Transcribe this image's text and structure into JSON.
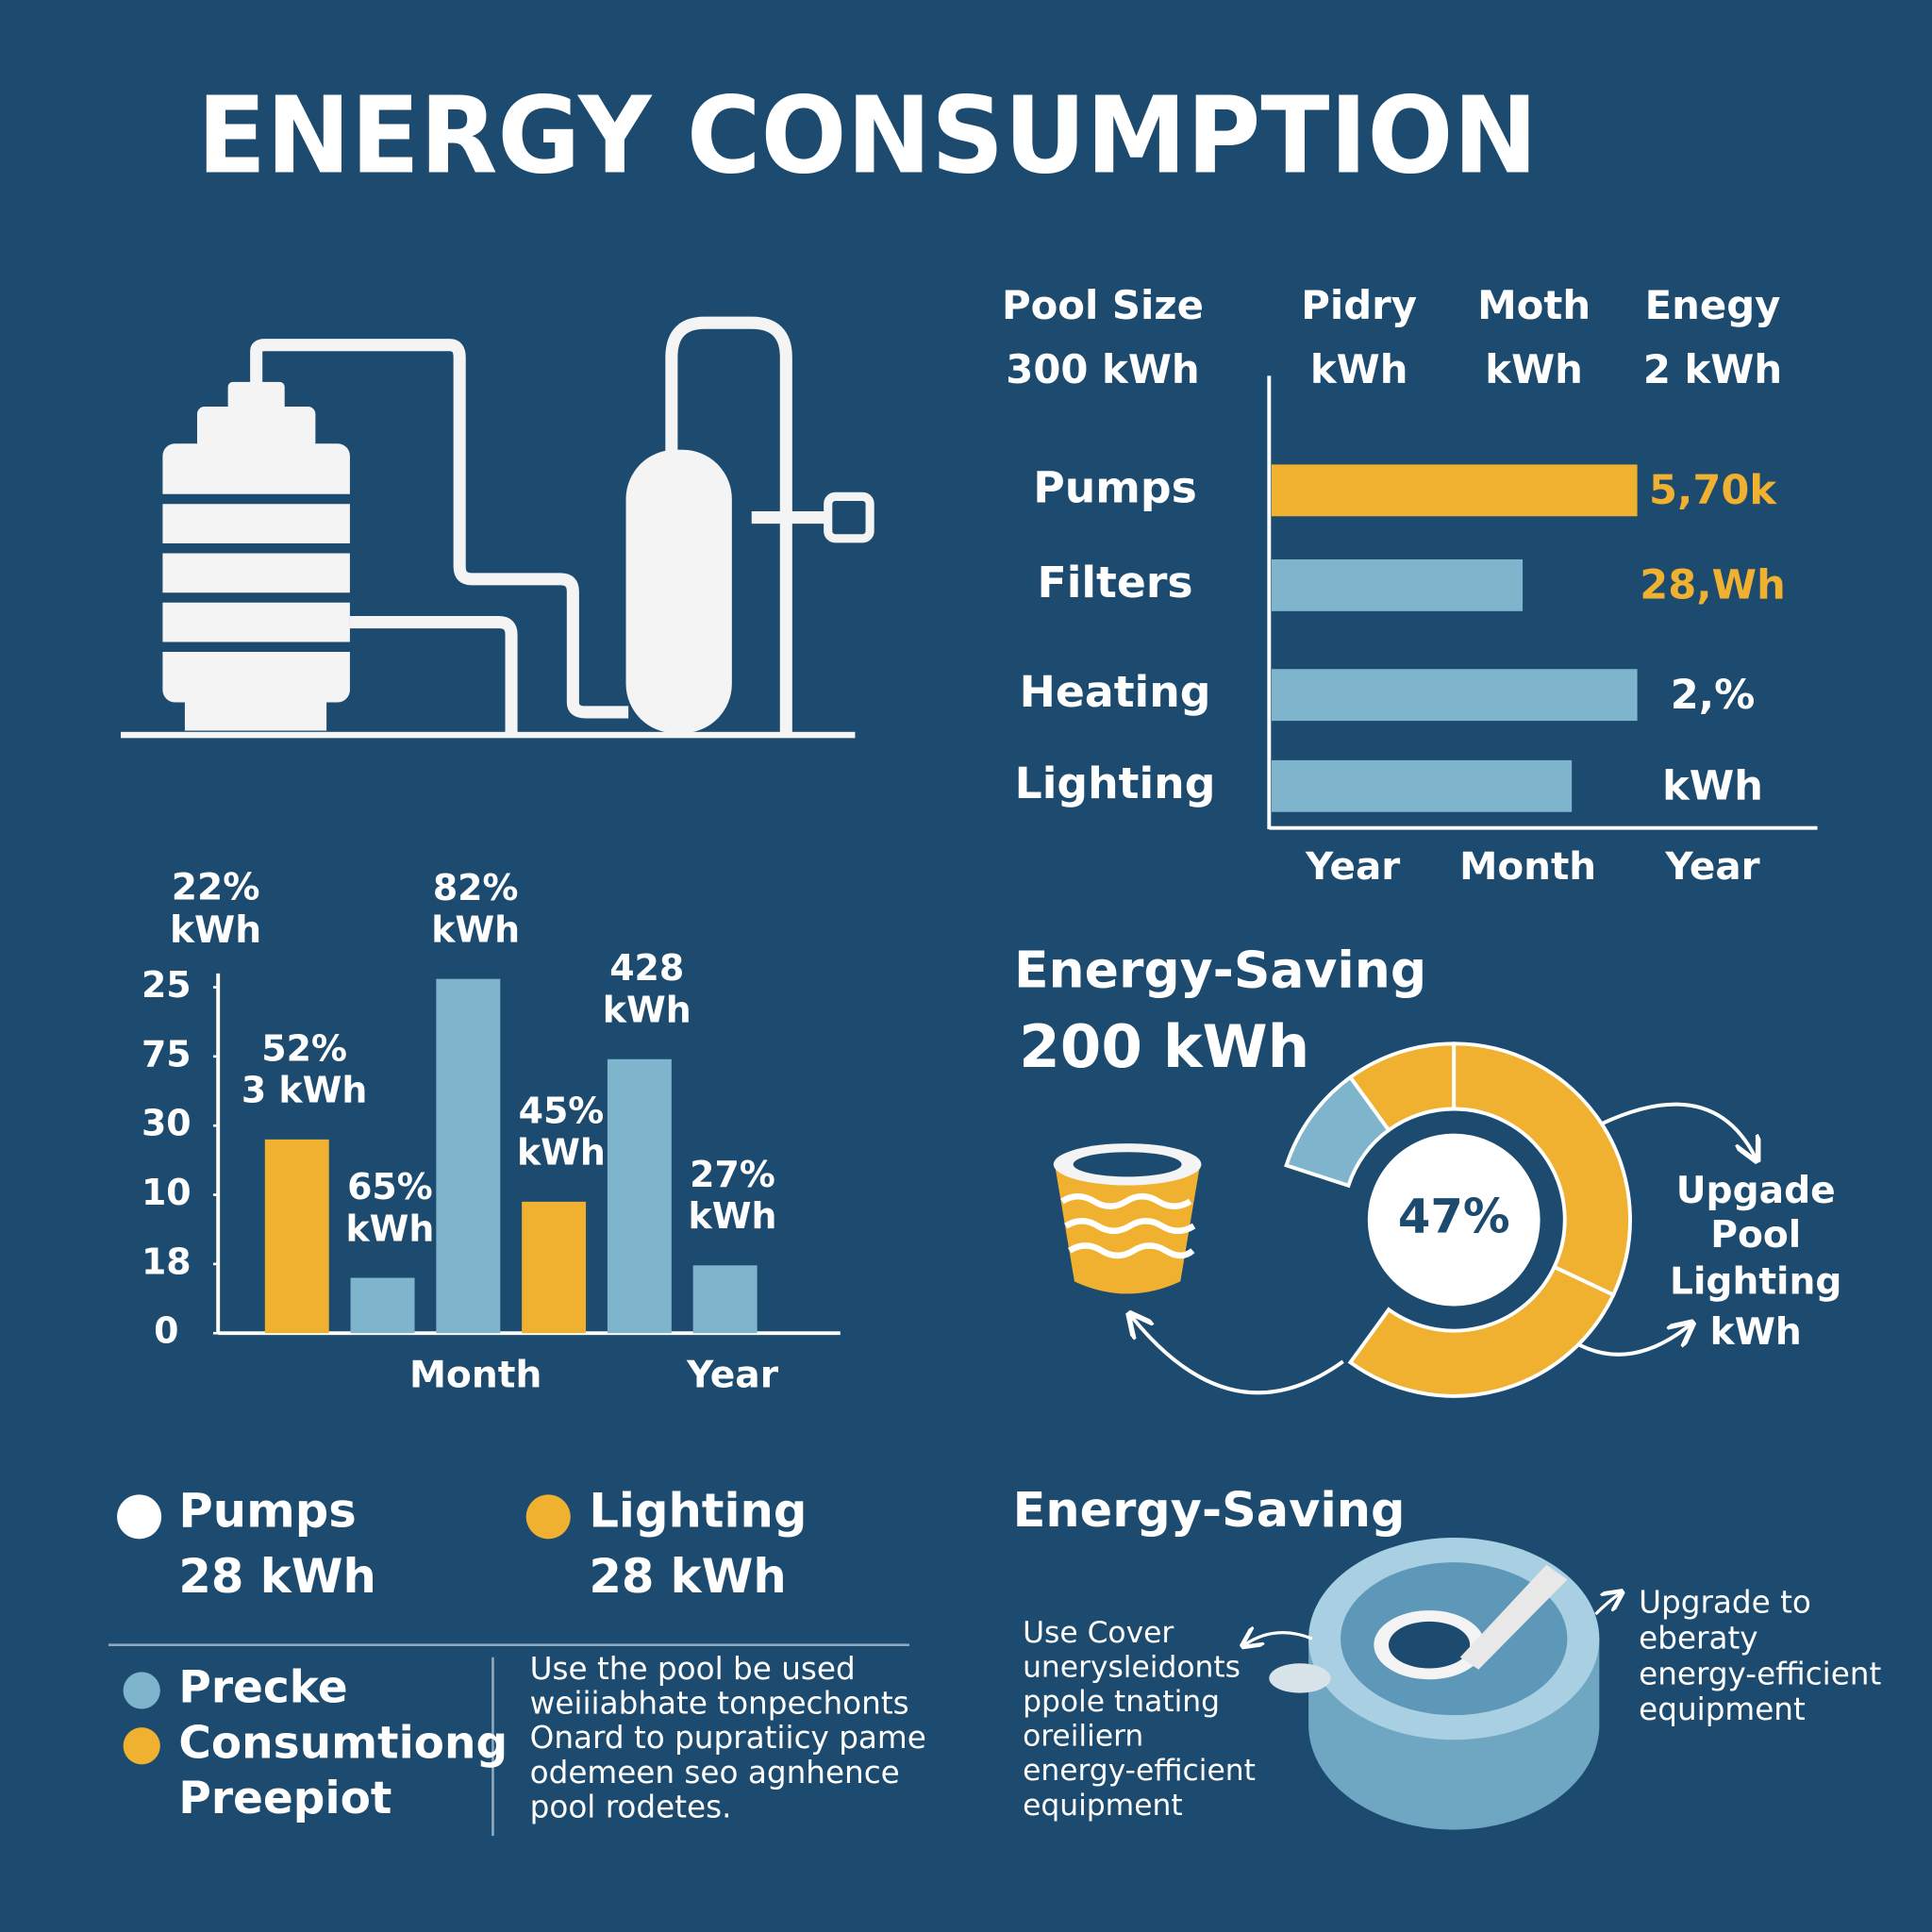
{
  "title": "ENERGY CONSUMPTION",
  "chart_data": [
    {
      "type": "hbar",
      "header": [
        [
          "Pool Size",
          "300 kWh"
        ],
        [
          "Pidry",
          "kWh"
        ],
        [
          "Moth",
          "kWh"
        ],
        [
          "Enegy",
          "2 kWh"
        ]
      ],
      "categories": [
        "Pumps",
        "Filters",
        "Heating",
        "Lighting"
      ],
      "values": [
        67,
        46,
        67,
        55
      ],
      "colors": [
        "#f0b030",
        "#7fb5cc",
        "#7fb5cc",
        "#7fb5cc"
      ],
      "bar_labels": [
        "5,70k",
        "28,Wh",
        "2,%",
        "kWh"
      ],
      "label_colors": [
        "#f0b030",
        "#f0b030",
        "#ffffff",
        "#ffffff"
      ],
      "xlim": [
        0,
        100
      ],
      "x_labels": [
        "Year",
        "Month",
        "Year"
      ]
    },
    {
      "type": "bar",
      "annotation": [
        "22%",
        "kWh"
      ],
      "categories": [
        null,
        null,
        "Month",
        null,
        null,
        "Year"
      ],
      "values": [
        14,
        4,
        25.6,
        9.5,
        19.8,
        4.9
      ],
      "colors": [
        "#f0b030",
        "#7fb5cc",
        "#7fb5cc",
        "#f0b030",
        "#7fb5cc",
        "#7fb5cc"
      ],
      "bar_labels": [
        [
          "52%",
          "3 kWh"
        ],
        [
          "65%",
          "kWh"
        ],
        [
          "82%",
          "kWh"
        ],
        [
          "45%",
          "kWh"
        ],
        [
          "428",
          "kWh"
        ],
        [
          "27%",
          "kWh"
        ]
      ],
      "ylim": [
        0,
        26
      ],
      "yticks": [
        0,
        {
          "value": 5,
          "label": "18"
        },
        10,
        {
          "value": 15,
          "label": "30"
        },
        {
          "value": 20,
          "label": "75"
        },
        25
      ]
    },
    {
      "type": "donut",
      "title": "Energy-Saving",
      "subtitle": "200 kWh",
      "center_label": "47%",
      "values": [
        10,
        10,
        32,
        28
      ],
      "colors": [
        "#7fb5cc",
        "#f0b030",
        "#f0b030",
        "#f0b030"
      ],
      "annotation": [
        "Upgade",
        "Pool",
        "Lighting",
        "kWh"
      ]
    }
  ],
  "legend": [
    {
      "label": "Pumps",
      "value": "28 kWh",
      "color": "#ffffff"
    },
    {
      "label": "Lighting",
      "value": "28 kWh",
      "color": "#f0b030"
    }
  ],
  "key": [
    {
      "label": "Precke",
      "color": "#7fb5cc"
    },
    {
      "label": "Consumtiong",
      "color": "#f0b030"
    },
    {
      "label": "Preepiot",
      "color": null
    }
  ],
  "paragraph": [
    "Use the pool be used",
    "weiiiabhate tonpechonts",
    "Onard to pupratiicy pame",
    "odemeen seo agnhence",
    "pool rodetes."
  ],
  "energy_saving": {
    "title": "Energy-Saving",
    "left": [
      "Use Cover",
      "unerysleidonts",
      "ppole tnating",
      "oreiliern",
      "energy-efficient",
      "equipment"
    ],
    "right": [
      "Upgrade to",
      "eberaty",
      "energy-efficient",
      "equipment"
    ]
  }
}
